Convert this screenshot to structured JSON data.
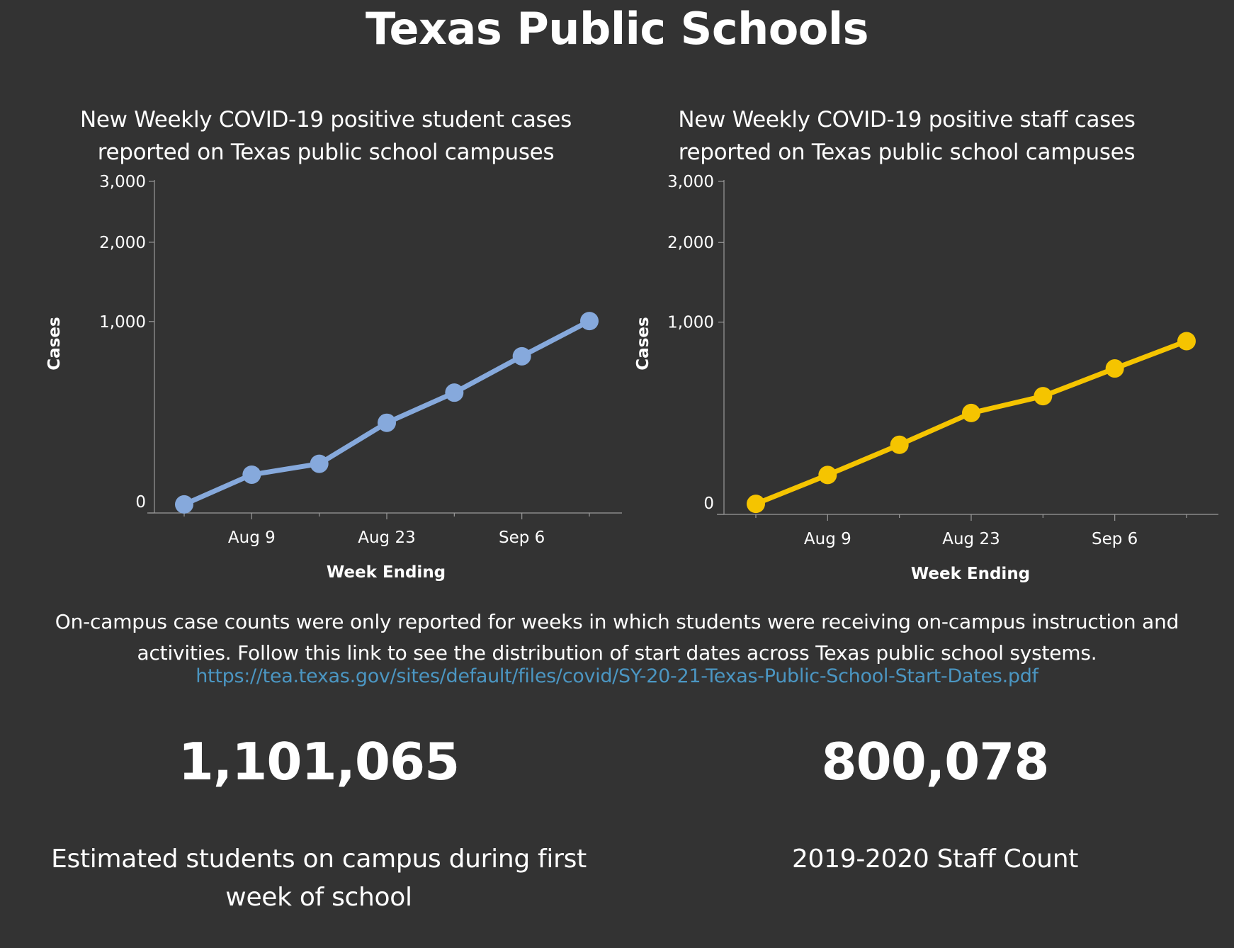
{
  "page": {
    "title": "Texas Public Schools",
    "note": "On-campus case counts were only reported for weeks in which students were receiving on-campus instruction and activities. Follow this link to see the distribution of start dates across Texas public school systems.",
    "link_text": "https://tea.texas.gov/sites/default/files/covid/SY-20-21-Texas-Public-School-Start-Dates.pdf"
  },
  "kpis": [
    {
      "value": "1,101,065",
      "label": "Estimated students on campus during first week of school"
    },
    {
      "value": "800,078",
      "label": "2019-2020 Staff Count"
    }
  ],
  "chart_data": [
    {
      "type": "line",
      "title": "New Weekly COVID-19 positive student cases reported on Texas public school campuses",
      "xlabel": "Week Ending",
      "ylabel": "Cases",
      "x": [
        "Aug 2",
        "Aug 9",
        "Aug 16",
        "Aug 23",
        "Aug 30",
        "Sep 6",
        "Sep 13"
      ],
      "x_tick_labels": [
        "Aug 9",
        "Aug 23",
        "Sep 6"
      ],
      "y_tick_labels": [
        "0",
        "1,000",
        "2,000",
        "3,000"
      ],
      "ylim": [
        0,
        3000
      ],
      "y_scale": "sqrt",
      "series": [
        {
          "values": [
            2,
            40,
            66,
            222,
            395,
            670,
            1005
          ],
          "color": "#86a9dc"
        }
      ],
      "grid": false
    },
    {
      "type": "line",
      "title": "New Weekly COVID-19 positive staff cases reported on Texas public school campuses",
      "xlabel": "Week Ending",
      "ylabel": "Cases",
      "x": [
        "Aug 2",
        "Aug 9",
        "Aug 16",
        "Aug 23",
        "Aug 30",
        "Sep 6",
        "Sep 13"
      ],
      "x_tick_labels": [
        "Aug 9",
        "Aug 23",
        "Sep 6"
      ],
      "y_tick_labels": [
        "0",
        "1,000",
        "2,000",
        "3,000"
      ],
      "ylim": [
        0,
        3000
      ],
      "y_scale": "sqrt",
      "series": [
        {
          "values": [
            3,
            42,
            131,
            278,
            378,
            576,
            812
          ],
          "color": "#f5c400"
        }
      ],
      "grid": false
    }
  ]
}
